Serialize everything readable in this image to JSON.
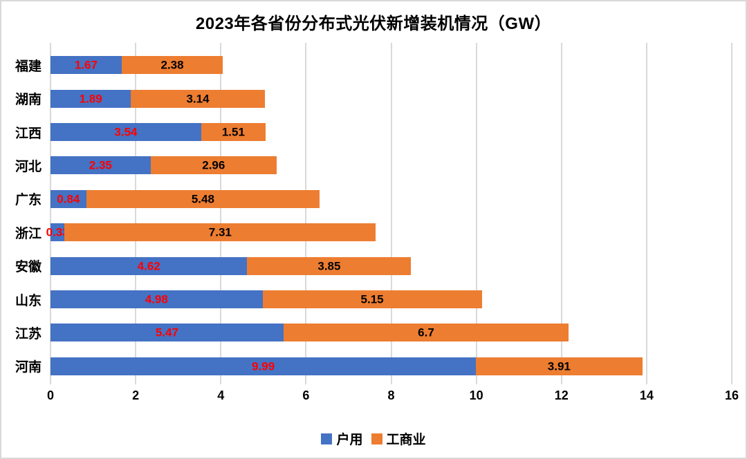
{
  "chart_data": {
    "type": "bar",
    "orientation": "horizontal",
    "stacked": true,
    "title": "2023年各省份分布式光伏新增装机情况（GW）",
    "categories_top_to_bottom": [
      "福建",
      "湖南",
      "江西",
      "河北",
      "广东",
      "浙江",
      "安徽",
      "山东",
      "江苏",
      "河南"
    ],
    "series": [
      {
        "key": "household",
        "name": "户用",
        "color": "#4472C4",
        "label_color": "#FF0000",
        "values": [
          1.67,
          1.89,
          3.54,
          2.35,
          0.84,
          0.33,
          4.62,
          4.98,
          5.47,
          9.99
        ]
      },
      {
        "key": "commercial",
        "name": "工商业",
        "color": "#ED7D31",
        "label_color": "#000000",
        "values": [
          2.38,
          3.14,
          1.51,
          2.96,
          5.48,
          7.31,
          3.85,
          5.15,
          6.7,
          3.91
        ]
      }
    ],
    "xlim": [
      0,
      16
    ],
    "x_ticks": [
      0,
      2,
      4,
      6,
      8,
      10,
      12,
      14,
      16
    ],
    "grid": "vertical",
    "gridline_color": "#D9D9D9",
    "border_color": "#D9D9D9",
    "background_color": "#FFFFFF",
    "legend_position": "bottom-center"
  }
}
